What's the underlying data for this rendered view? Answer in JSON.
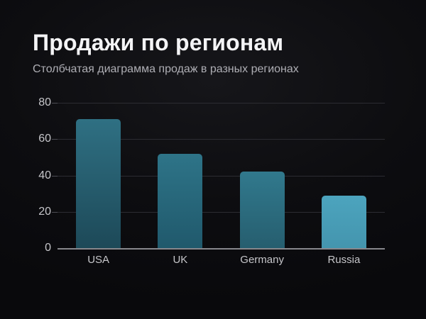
{
  "header": {
    "title": "Продажи по регионам",
    "subtitle": "Столбчатая диаграмма продаж в разных регионах"
  },
  "colors": {
    "background": "#0d0d10",
    "title_text": "#f4f4f6",
    "subtitle_text": "#aeaeb4",
    "axis_label": "#c6c6ca",
    "gridline": "#2c2c32",
    "axis_line": "#87878c",
    "bar_gradients": [
      {
        "top": "#2f7083",
        "bottom": "#1d4958"
      },
      {
        "top": "#2e7488",
        "bottom": "#20596c"
      },
      {
        "top": "#31798d",
        "bottom": "#265e6f"
      },
      {
        "top": "#4ca4be",
        "bottom": "#4495ae"
      }
    ]
  },
  "chart_data": {
    "type": "bar",
    "title": "Продажи по регионам",
    "subtitle": "Столбчатая диаграмма продаж в разных регионах",
    "categories": [
      "USA",
      "UK",
      "Germany",
      "Russia"
    ],
    "values": [
      71,
      52,
      42,
      29
    ],
    "xlabel": "",
    "ylabel": "",
    "y_ticks": [
      0,
      20,
      40,
      60,
      80
    ],
    "ylim": [
      0,
      80
    ],
    "grid": true,
    "legend": false
  }
}
